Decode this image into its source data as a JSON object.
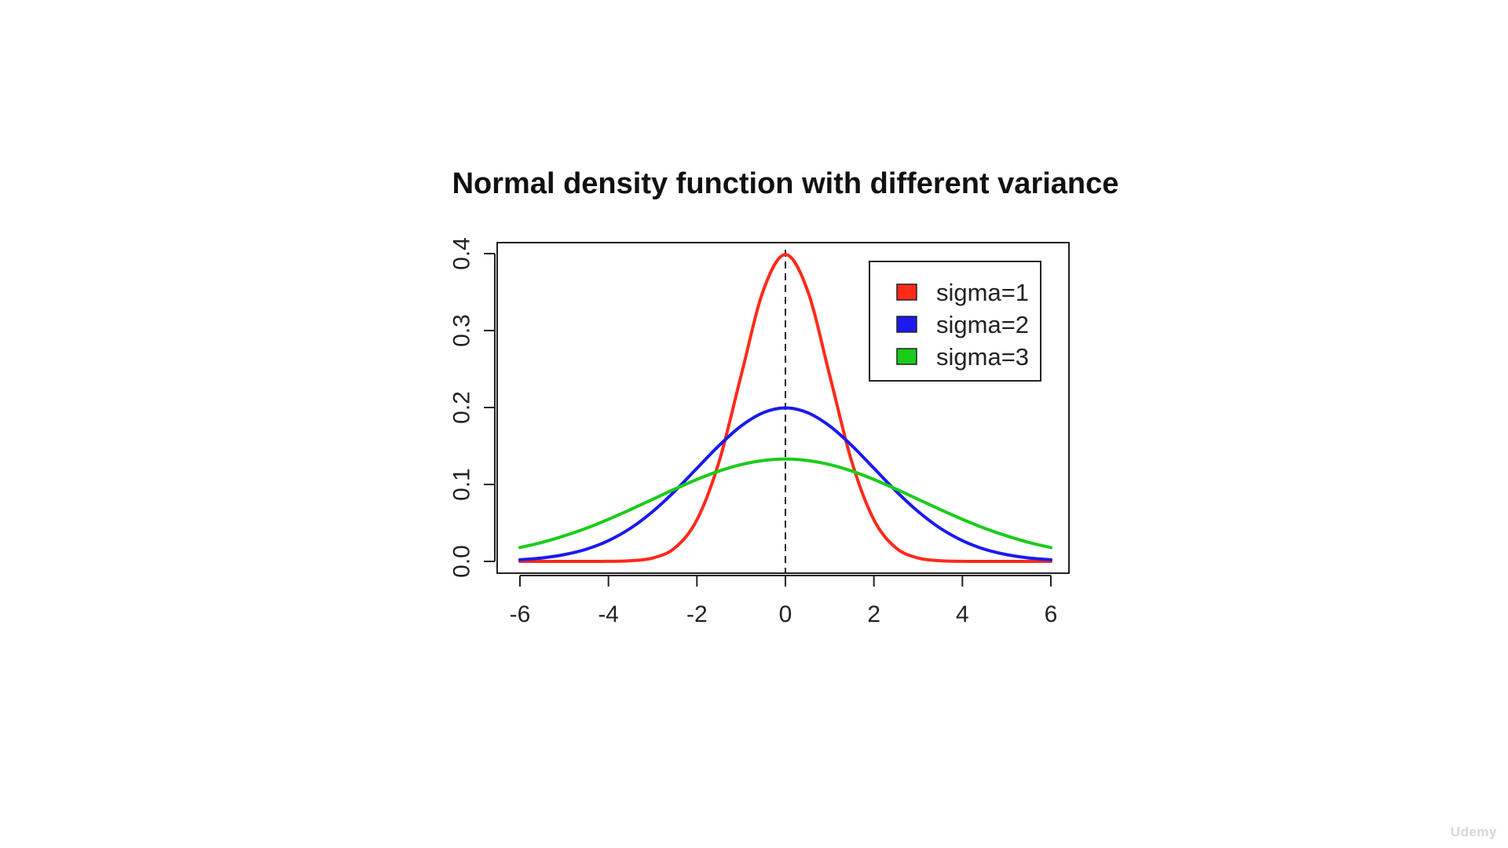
{
  "chart_data": {
    "type": "line",
    "title": "Normal density function with different variance",
    "xlabel": "",
    "ylabel": "",
    "xlim": [
      -6,
      6
    ],
    "ylim": [
      0,
      0.4
    ],
    "x_ticks": [
      -6,
      -4,
      -2,
      0,
      2,
      4,
      6
    ],
    "x_tick_labels": [
      "-6",
      "-4",
      "-2",
      "0",
      "2",
      "4",
      "6"
    ],
    "y_ticks": [
      0,
      0.1,
      0.2,
      0.3,
      0.4
    ],
    "y_tick_labels": [
      "0.0",
      "0.1",
      "0.2",
      "0.3",
      "0.4"
    ],
    "grid": false,
    "legend_position": "top-right",
    "reference_line": {
      "orientation": "vertical",
      "x": 0,
      "style": "dashed",
      "color": "#222222"
    },
    "x": [
      -6,
      -5.5,
      -5,
      -4.5,
      -4,
      -3.5,
      -3,
      -2.5,
      -2,
      -1.5,
      -1,
      -0.5,
      0,
      0.5,
      1,
      1.5,
      2,
      2.5,
      3,
      3.5,
      4,
      4.5,
      5,
      5.5,
      6
    ],
    "series": [
      {
        "name": "sigma=1",
        "color": "#ff2a1a",
        "values": [
          0.0,
          0.0,
          0.0,
          0.0,
          0.0001,
          0.0009,
          0.0044,
          0.0175,
          0.054,
          0.1295,
          0.242,
          0.3521,
          0.3989,
          0.3521,
          0.242,
          0.1295,
          0.054,
          0.0175,
          0.0044,
          0.0009,
          0.0001,
          0.0,
          0.0,
          0.0,
          0.0
        ]
      },
      {
        "name": "sigma=2",
        "color": "#1a1aee",
        "values": [
          0.0022,
          0.0045,
          0.0088,
          0.0158,
          0.027,
          0.0431,
          0.0648,
          0.0913,
          0.121,
          0.1506,
          0.176,
          0.1933,
          0.1995,
          0.1933,
          0.176,
          0.1506,
          0.121,
          0.0913,
          0.0648,
          0.0431,
          0.027,
          0.0158,
          0.0088,
          0.0045,
          0.0022
        ]
      },
      {
        "name": "sigma=3",
        "color": "#1acc1a",
        "values": [
          0.018,
          0.0247,
          0.0332,
          0.0431,
          0.0547,
          0.0674,
          0.0807,
          0.094,
          0.1065,
          0.1174,
          0.1258,
          0.1311,
          0.133,
          0.1311,
          0.1258,
          0.1174,
          0.1065,
          0.094,
          0.0807,
          0.0674,
          0.0547,
          0.0431,
          0.0332,
          0.0247,
          0.018
        ]
      }
    ]
  },
  "watermark": "Udemy"
}
